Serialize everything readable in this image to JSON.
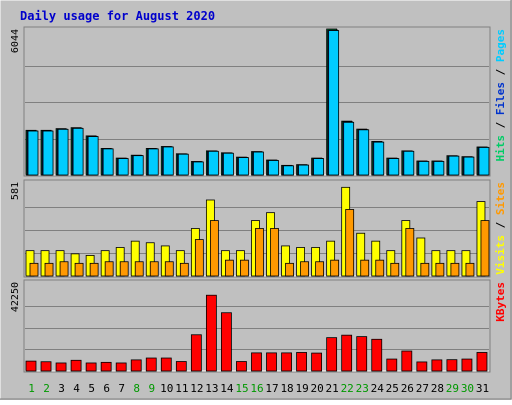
{
  "chart_data": {
    "type": "bar",
    "title": "Daily usage for August 2020",
    "categories": [
      "1",
      "2",
      "3",
      "4",
      "5",
      "6",
      "7",
      "8",
      "9",
      "10",
      "11",
      "12",
      "13",
      "14",
      "15",
      "16",
      "17",
      "18",
      "19",
      "20",
      "21",
      "22",
      "23",
      "24",
      "25",
      "26",
      "27",
      "28",
      "29",
      "30",
      "31"
    ],
    "weekend_days": [
      "1",
      "2",
      "8",
      "9",
      "15",
      "16",
      "22",
      "23",
      "29",
      "30"
    ],
    "colors": {
      "background": "#c0c0c0",
      "title": "#0000cc",
      "hits": "#00cc66",
      "files": "#0033cc",
      "pages": "#00ccff",
      "visits": "#ffff00",
      "sites": "#ff9900",
      "kbytes": "#ff0000",
      "weekday_label": "#008000",
      "weekend_label": "#009900"
    },
    "panels": [
      {
        "id": "top",
        "max_label": "6044",
        "ymax": 6044,
        "ylabel_parts": [
          "Pages",
          "Files",
          "Hits"
        ],
        "ylabel_colors": [
          "#00ccff",
          "#0033cc",
          "#00cc66"
        ],
        "series": [
          {
            "name": "Hits",
            "color": "#00cc66",
            "values": [
              1850,
              1850,
              1920,
              1960,
              1620,
              1100,
              700,
              820,
              1100,
              1180,
              880,
              560,
              1000,
              920,
              740,
              970,
              620,
              400,
              430,
              700,
              6044,
              2230,
              1900,
              1390,
              700,
              1000,
              580,
              580,
              800,
              760,
              1160
            ]
          },
          {
            "name": "Files",
            "color": "#0033cc",
            "values": [
              1830,
              1830,
              1900,
              1940,
              1600,
              1090,
              690,
              810,
              1090,
              1170,
              870,
              550,
              990,
              910,
              730,
              960,
              610,
              390,
              420,
              690,
              6000,
              2200,
              1880,
              1370,
              690,
              990,
              570,
              570,
              790,
              750,
              1150
            ]
          },
          {
            "name": "Pages",
            "color": "#00ccff",
            "values": [
              1820,
              1820,
              1890,
              1930,
              1590,
              1080,
              680,
              800,
              1080,
              1160,
              860,
              540,
              980,
              900,
              720,
              950,
              600,
              380,
              410,
              680,
              5980,
              2180,
              1870,
              1360,
              680,
              980,
              560,
              560,
              780,
              740,
              1140
            ]
          }
        ]
      },
      {
        "id": "middle",
        "max_label": "581",
        "ymax": 581,
        "ylabel_parts": [
          "Sites",
          "Visits"
        ],
        "ylabel_colors": [
          "#ff9900",
          "#ffff00"
        ],
        "series": [
          {
            "name": "Visits",
            "color": "#ffff00",
            "values": [
              160,
              160,
              160,
              140,
              130,
              160,
              180,
              220,
              210,
              190,
              160,
              300,
              480,
              160,
              160,
              350,
              400,
              190,
              180,
              180,
              220,
              560,
              270,
              220,
              160,
              350,
              240,
              160,
              160,
              160,
              470
            ]
          },
          {
            "name": "Sites",
            "color": "#ff9900",
            "values": [
              80,
              80,
              90,
              80,
              80,
              90,
              90,
              90,
              90,
              90,
              80,
              230,
              350,
              100,
              100,
              300,
              300,
              80,
              90,
              90,
              100,
              420,
              100,
              100,
              80,
              300,
              80,
              80,
              80,
              80,
              350
            ]
          }
        ]
      },
      {
        "id": "bottom",
        "max_label": "42250",
        "ymax": 42250,
        "ylabel_parts": [
          "KBytes"
        ],
        "ylabel_colors": [
          "#ff0000"
        ],
        "series": [
          {
            "name": "KBytes",
            "color": "#ff0000",
            "values": [
              4800,
              4500,
              3900,
              5200,
              3900,
              4200,
              3900,
              5400,
              6300,
              6300,
              4600,
              17600,
              36800,
              28300,
              4600,
              8800,
              8800,
              8800,
              9000,
              8700,
              16200,
              17400,
              16700,
              15400,
              5800,
              9700,
              4400,
              5400,
              5500,
              5800,
              9000
            ]
          }
        ]
      }
    ]
  }
}
